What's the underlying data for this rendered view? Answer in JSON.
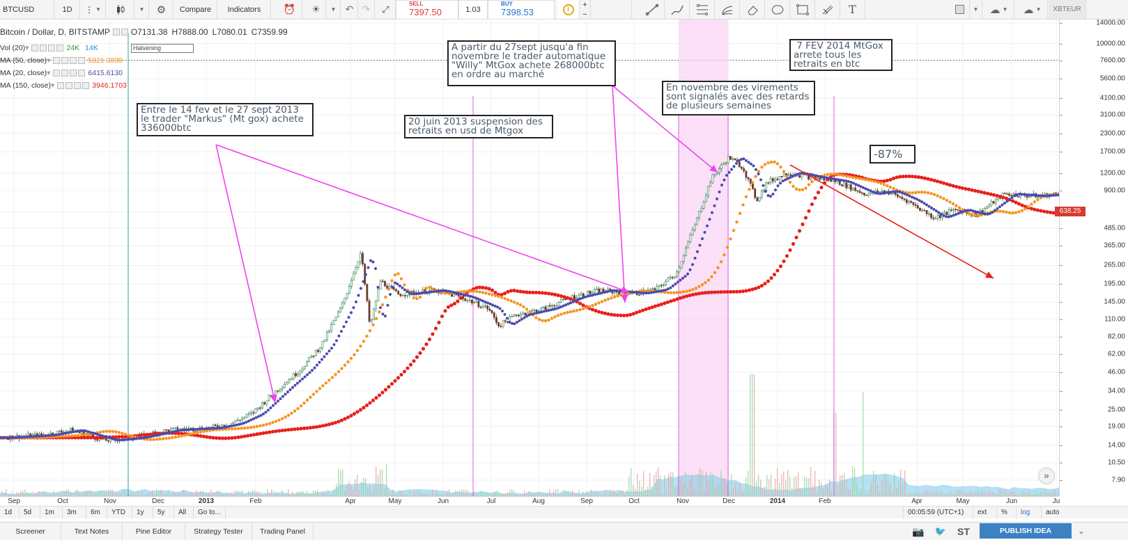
{
  "toolbar": {
    "symbol": "BTCUSD",
    "interval": "1D",
    "compare_label": "Compare",
    "indicators_label": "Indicators",
    "sell_label": "SELL",
    "sell_price": "7397.50",
    "spread": "1.03",
    "buy_label": "BUY",
    "buy_price": "7398.53",
    "plus_label": "+",
    "minus_label": "−",
    "right_symbol": "XBTEUR",
    "icons": [
      "candles-icon",
      "gear-icon",
      "alert-clock-icon",
      "bulb-icon",
      "undo-icon",
      "redo-icon",
      "fullscreen-icon",
      "info-icon",
      "trend-line-icon",
      "brush-icon",
      "fib-icon",
      "pitchfork-icon",
      "eraser-icon",
      "shape-icon",
      "rectangle-icon",
      "measure-icon",
      "text-icon",
      "cloud-load-icon",
      "cloud-save-icon"
    ]
  },
  "legend": {
    "main": "Bitcoin / Dollar, D, BITSTAMP",
    "open": "O7131.38",
    "high": "H7888.00",
    "low": "L7080.01",
    "close": "C7359.99",
    "halvening": "Halvening",
    "rows": [
      {
        "name": "Vol (20)",
        "values": [
          "24K",
          "14K"
        ],
        "colors": [
          "#2a9a3a",
          "#2a90d0"
        ]
      },
      {
        "name": "MA (50, close)",
        "values": [
          "5321.3830"
        ],
        "colors": [
          "#f7931e"
        ]
      },
      {
        "name": "MA (20, close)",
        "values": [
          "6415.6130"
        ],
        "colors": [
          "#4a4ab0"
        ]
      },
      {
        "name": "MA (150, close)",
        "values": [
          "3946.1703"
        ],
        "colors": [
          "#e8201c"
        ]
      }
    ]
  },
  "annotations": [
    "Entre le 14 fev et le 27 sept 2013\nle trader \"Markus\" (Mt gox) achete\n336000btc",
    "20 juin 2013 suspension des\nretraits en usd de Mtgox",
    "A partir du 27sept jusqu'a fin\nnovembre le trader automatique\n\"Willy\" MtGox achete 268000btc\nen ordre au marché",
    "En novembre des virements\nsont signalés avec des retards\nde plusieurs semaines",
    " 7 FEV 2014 MtGox\narrete tous les\nretraits en btc",
    "-87%"
  ],
  "price_axis": {
    "labels": [
      "14000.00",
      "10000.00",
      "7600.00",
      "5600.00",
      "4100.00",
      "3100.00",
      "2300.00",
      "1700.00",
      "1200.00",
      "900.00",
      "638.25",
      "485.00",
      "365.00",
      "265.00",
      "195.00",
      "145.00",
      "110.00",
      "82.00",
      "62.00",
      "46.00",
      "34.00",
      "25.00",
      "19.00",
      "14.00",
      "10.50",
      "7.90"
    ],
    "last_price": "638.25"
  },
  "time_axis": {
    "labels": [
      "Sep",
      "Oct",
      "Nov",
      "Dec",
      "2013",
      "Feb",
      "Apr",
      "May",
      "Jun",
      "Jul",
      "Aug",
      "Sep",
      "Oct",
      "Nov",
      "Dec",
      "2014",
      "Feb",
      "Apr",
      "May",
      "Jun",
      "Ju"
    ],
    "bold_labels": [
      "2013",
      "2014"
    ]
  },
  "range_bar": {
    "ranges": [
      "1d",
      "5d",
      "1m",
      "3m",
      "6m",
      "YTD",
      "1y",
      "5y",
      "All",
      "Go to..."
    ],
    "time": "00:05:59 (UTC+1)",
    "options": [
      "ext",
      "%",
      "log",
      "auto"
    ],
    "active_option": "log"
  },
  "bottom_tabs": {
    "tabs": [
      "Screener",
      "Text Notes",
      "Pine Editor",
      "Strategy Tester",
      "Trading Panel"
    ],
    "st_label": "ST",
    "publish_label": "PUBLISH IDEA"
  },
  "colors": {
    "ma20": "#4a4ab0",
    "ma50": "#f7931e",
    "ma150": "#e8201c",
    "up_candle": "#2e7d4f",
    "down_candle": "#6b3a2a",
    "volume_area": "#8fd0f0",
    "marker_line": "#e05ce0",
    "arrow": "#f040f0",
    "trend": "#e82018"
  }
}
